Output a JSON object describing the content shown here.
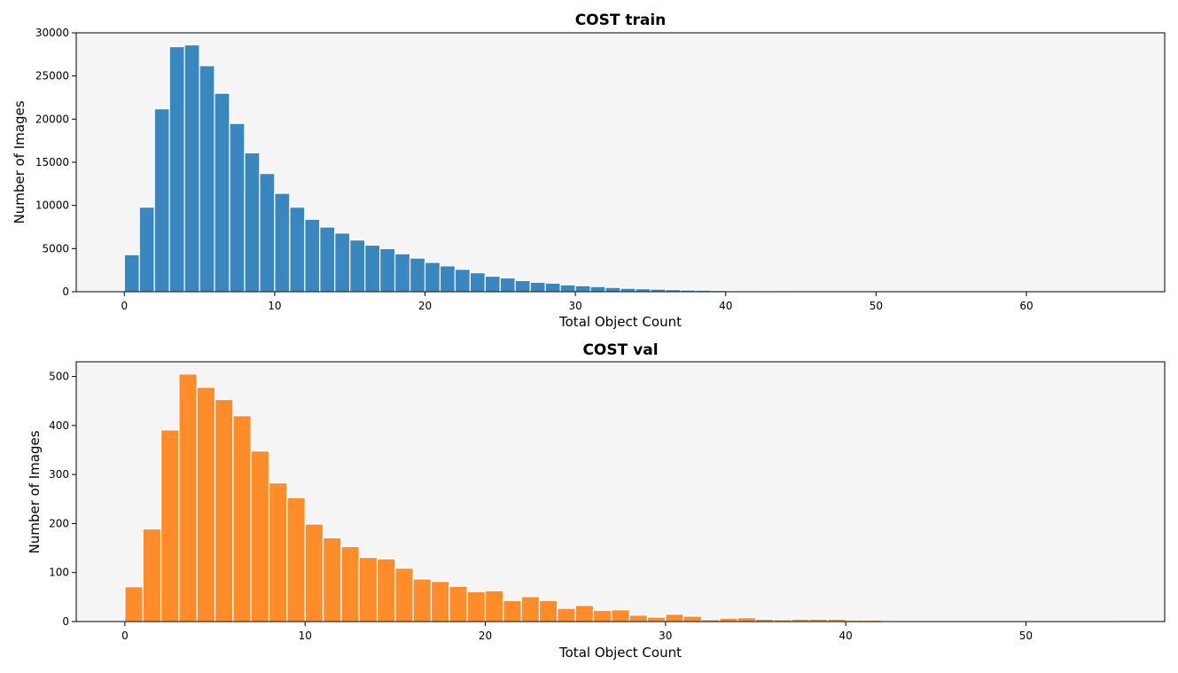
{
  "chart_data": [
    {
      "type": "bar",
      "title": "COST train",
      "xlabel": "Total Object Count",
      "ylabel": "Number of Images",
      "color": "#3a87c0",
      "xlim": [
        -3.2,
        69.2
      ],
      "ylim": [
        0,
        30000
      ],
      "xticks": [
        0,
        10,
        20,
        30,
        40,
        50,
        60
      ],
      "yticks": [
        0,
        5000,
        10000,
        15000,
        20000,
        25000,
        30000
      ],
      "bin_width": 1,
      "bin_starts": [
        0,
        1,
        2,
        3,
        4,
        5,
        6,
        7,
        8,
        9,
        10,
        11,
        12,
        13,
        14,
        15,
        16,
        17,
        18,
        19,
        20,
        21,
        22,
        23,
        24,
        25,
        26,
        27,
        28,
        29,
        30,
        31,
        32,
        33,
        34,
        35,
        36,
        37,
        38,
        39,
        40,
        41,
        42,
        43,
        44,
        45,
        46,
        47,
        48,
        49,
        50,
        51,
        52,
        53,
        54,
        55,
        56,
        57,
        58,
        59,
        60,
        61,
        62,
        63,
        64,
        65,
        66
      ],
      "values": [
        4300,
        9800,
        21200,
        28400,
        28600,
        26200,
        23000,
        19500,
        16100,
        13700,
        11400,
        9800,
        8400,
        7500,
        6800,
        6000,
        5400,
        5000,
        4400,
        3900,
        3400,
        3000,
        2600,
        2200,
        1800,
        1600,
        1300,
        1100,
        1000,
        800,
        700,
        600,
        500,
        400,
        350,
        300,
        250,
        200,
        180,
        150,
        120,
        100,
        80,
        70,
        50,
        40,
        30,
        25,
        20,
        15,
        12,
        10,
        8,
        6,
        5,
        4,
        3,
        3,
        2,
        2,
        2,
        1,
        1,
        1,
        1,
        1,
        1
      ]
    },
    {
      "type": "bar",
      "title": "COST val",
      "xlabel": "Total Object Count",
      "ylabel": "Number of Images",
      "color": "#ff8c2a",
      "xlim": [
        -2.7,
        57.7
      ],
      "ylim": [
        0,
        530
      ],
      "xticks": [
        0,
        10,
        20,
        30,
        40,
        50
      ],
      "yticks": [
        0,
        100,
        200,
        300,
        400,
        500
      ],
      "bin_width": 1,
      "bin_starts": [
        0,
        1,
        2,
        3,
        4,
        5,
        6,
        7,
        8,
        9,
        10,
        11,
        12,
        13,
        14,
        15,
        16,
        17,
        18,
        19,
        20,
        21,
        22,
        23,
        24,
        25,
        26,
        27,
        28,
        29,
        30,
        31,
        32,
        33,
        34,
        35,
        36,
        37,
        38,
        39,
        40,
        41,
        42,
        43,
        44,
        45,
        46,
        47,
        48,
        49,
        50,
        51,
        52,
        53,
        54
      ],
      "values": [
        71,
        189,
        391,
        505,
        478,
        453,
        420,
        348,
        283,
        253,
        199,
        171,
        153,
        131,
        128,
        109,
        87,
        82,
        72,
        61,
        63,
        43,
        51,
        43,
        27,
        33,
        23,
        24,
        13,
        9,
        15,
        11,
        4,
        7,
        8,
        5,
        4,
        5,
        5,
        5,
        3,
        3,
        1,
        1,
        1,
        1,
        1,
        1,
        1,
        1,
        1,
        1,
        1,
        1,
        1
      ]
    }
  ]
}
